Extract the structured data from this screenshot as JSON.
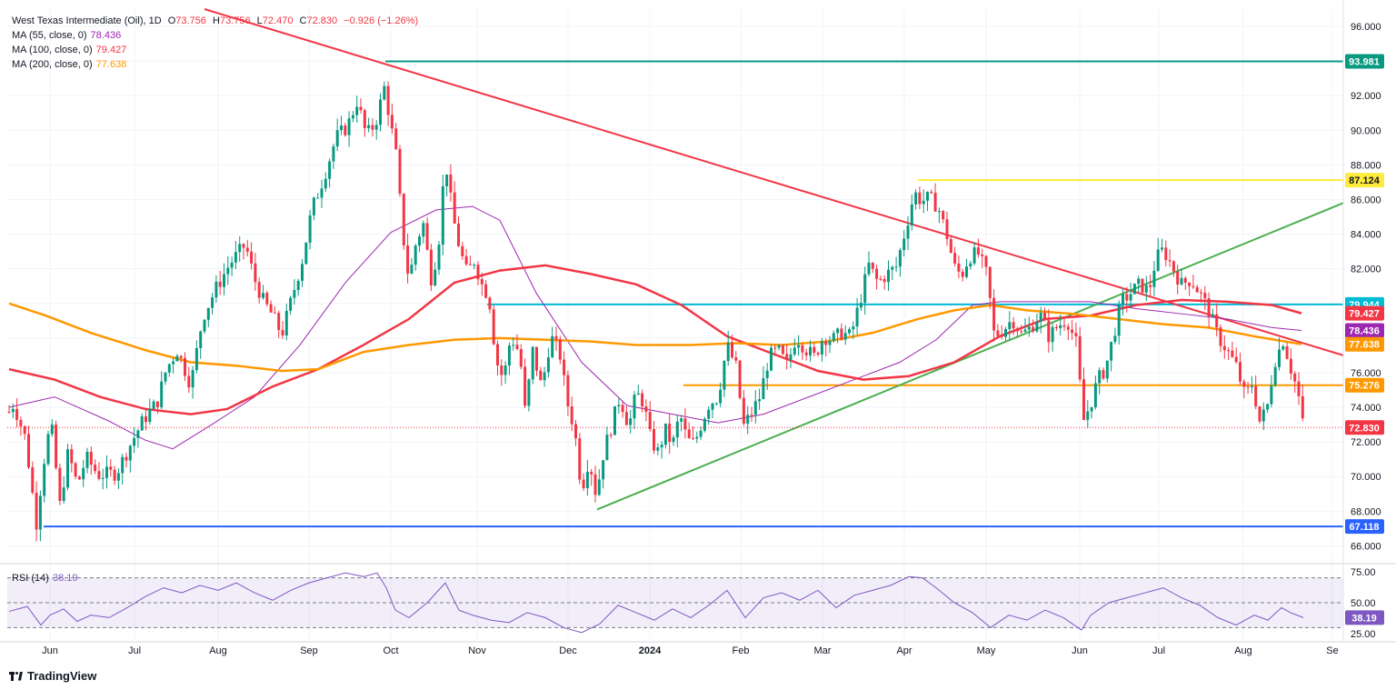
{
  "header": {
    "symbol": "West Texas Intermediate (Oil), 1D",
    "o_label": "O",
    "o_value": "73.756",
    "h_label": "H",
    "h_value": "73.756",
    "l_label": "L",
    "l_value": "72.470",
    "c_label": "C",
    "c_value": "72.830",
    "change": "−0.926 (−1.26%)",
    "change_color": "#f23645"
  },
  "indicators": [
    {
      "label": "MA (55, close, 0)",
      "value": "78.436",
      "color": "#9c27b0"
    },
    {
      "label": "MA (100, close, 0)",
      "value": "79.427",
      "color": "#f23645"
    },
    {
      "label": "MA (200, close, 0)",
      "value": "77.638",
      "color": "#ff9800"
    }
  ],
  "rsi_header": {
    "label": "RSI (14)",
    "value": "38.19",
    "color": "#7e57c2"
  },
  "branding": {
    "text": "TradingView"
  },
  "chart_data": {
    "type": "candlestick",
    "x_ticks": [
      "Jun",
      "Jul",
      "Aug",
      "Sep",
      "Oct",
      "Nov",
      "Dec",
      "2024",
      "Feb",
      "Mar",
      "Apr",
      "May",
      "Jun",
      "Jul",
      "Aug",
      "Se"
    ],
    "y_ticks": [
      "96.000",
      "94.000",
      "92.000",
      "90.000",
      "88.000",
      "86.000",
      "84.000",
      "82.000",
      "80.000",
      "78.000",
      "76.000",
      "74.000",
      "72.000",
      "70.000",
      "68.000",
      "66.000"
    ],
    "ylim": [
      65.6,
      97
    ],
    "price_path": [
      [
        0,
        72.8
      ],
      [
        15,
        74.2
      ],
      [
        28,
        72.2
      ],
      [
        40,
        67.3
      ],
      [
        48,
        70.8
      ],
      [
        56,
        73.2
      ],
      [
        66,
        68.3
      ],
      [
        75,
        71.4
      ],
      [
        85,
        69.5
      ],
      [
        95,
        71.1
      ],
      [
        108,
        70.1
      ],
      [
        128,
        70.2
      ],
      [
        143,
        71.8
      ],
      [
        158,
        73.3
      ],
      [
        173,
        74.3
      ],
      [
        183,
        76.2
      ],
      [
        195,
        77.3
      ],
      [
        210,
        75.3
      ],
      [
        223,
        79.2
      ],
      [
        238,
        80.9
      ],
      [
        253,
        82.3
      ],
      [
        270,
        83.4
      ],
      [
        280,
        81.4
      ],
      [
        290,
        80.1
      ],
      [
        300,
        79.3
      ],
      [
        310,
        78.2
      ],
      [
        320,
        80.1
      ],
      [
        333,
        82.6
      ],
      [
        343,
        85.4
      ],
      [
        357,
        87.4
      ],
      [
        370,
        89.6
      ],
      [
        382,
        90.2
      ],
      [
        393,
        91.7
      ],
      [
        403,
        89.7
      ],
      [
        413,
        90.4
      ],
      [
        423,
        92.5
      ],
      [
        430,
        90.3
      ],
      [
        436,
        88.5
      ],
      [
        443,
        84.1
      ],
      [
        450,
        81.3
      ],
      [
        458,
        83.6
      ],
      [
        466,
        84.6
      ],
      [
        474,
        81.4
      ],
      [
        482,
        83.1
      ],
      [
        490,
        88.4
      ],
      [
        498,
        85.1
      ],
      [
        506,
        83.1
      ],
      [
        514,
        81.7
      ],
      [
        522,
        82.5
      ],
      [
        530,
        81.1
      ],
      [
        538,
        80.4
      ],
      [
        546,
        76.7
      ],
      [
        554,
        75.6
      ],
      [
        562,
        78.1
      ],
      [
        572,
        77.1
      ],
      [
        578,
        73.6
      ],
      [
        586,
        77.3
      ],
      [
        596,
        75.1
      ],
      [
        606,
        78.1
      ],
      [
        616,
        77.1
      ],
      [
        624,
        74.3
      ],
      [
        632,
        72.8
      ],
      [
        640,
        69.2
      ],
      [
        648,
        71.1
      ],
      [
        656,
        68.9
      ],
      [
        664,
        71.4
      ],
      [
        672,
        72.8
      ],
      [
        682,
        74.6
      ],
      [
        692,
        72.9
      ],
      [
        700,
        74.8
      ],
      [
        708,
        74.3
      ],
      [
        716,
        72.1
      ],
      [
        724,
        71.4
      ],
      [
        732,
        72.7
      ],
      [
        740,
        71.8
      ],
      [
        748,
        73.6
      ],
      [
        756,
        72.1
      ],
      [
        764,
        71.9
      ],
      [
        772,
        73.1
      ],
      [
        780,
        74.2
      ],
      [
        790,
        74.6
      ],
      [
        800,
        77.6
      ],
      [
        810,
        76.3
      ],
      [
        818,
        72.9
      ],
      [
        826,
        73.6
      ],
      [
        836,
        74.6
      ],
      [
        846,
        76.9
      ],
      [
        856,
        77.3
      ],
      [
        866,
        76.4
      ],
      [
        876,
        78.1
      ],
      [
        886,
        77.4
      ],
      [
        896,
        76.9
      ],
      [
        906,
        78.1
      ],
      [
        916,
        77.9
      ],
      [
        926,
        78.3
      ],
      [
        936,
        78.1
      ],
      [
        946,
        80.1
      ],
      [
        956,
        82.2
      ],
      [
        966,
        81.2
      ],
      [
        976,
        81.7
      ],
      [
        986,
        82.1
      ],
      [
        996,
        84.2
      ],
      [
        1006,
        86.4
      ],
      [
        1014,
        85.9
      ],
      [
        1022,
        86.1
      ],
      [
        1032,
        85.6
      ],
      [
        1042,
        83.9
      ],
      [
        1050,
        82.1
      ],
      [
        1058,
        81.6
      ],
      [
        1066,
        82.7
      ],
      [
        1076,
        82.9
      ],
      [
        1086,
        81.6
      ],
      [
        1094,
        78.1
      ],
      [
        1104,
        78.5
      ],
      [
        1114,
        79.1
      ],
      [
        1124,
        78.2
      ],
      [
        1134,
        78.6
      ],
      [
        1144,
        79.4
      ],
      [
        1154,
        78.1
      ],
      [
        1164,
        78.7
      ],
      [
        1174,
        79.1
      ],
      [
        1184,
        77.7
      ],
      [
        1192,
        73.2
      ],
      [
        1200,
        74.2
      ],
      [
        1208,
        75.6
      ],
      [
        1216,
        76.2
      ],
      [
        1224,
        77.9
      ],
      [
        1234,
        80.1
      ],
      [
        1244,
        80.6
      ],
      [
        1254,
        81.1
      ],
      [
        1264,
        80.7
      ],
      [
        1272,
        82.6
      ],
      [
        1280,
        83.1
      ],
      [
        1290,
        82.1
      ],
      [
        1300,
        81.1
      ],
      [
        1310,
        81.4
      ],
      [
        1320,
        80.6
      ],
      [
        1330,
        79.6
      ],
      [
        1340,
        78.1
      ],
      [
        1350,
        77.3
      ],
      [
        1360,
        76.4
      ],
      [
        1370,
        74.6
      ],
      [
        1378,
        75.4
      ],
      [
        1386,
        73.2
      ],
      [
        1394,
        73.9
      ],
      [
        1402,
        76.6
      ],
      [
        1412,
        77.9
      ],
      [
        1420,
        76.3
      ],
      [
        1428,
        74.9
      ],
      [
        1434,
        72.83
      ]
    ],
    "moving_averages": [
      {
        "name": "MA 55",
        "color": "#9c27b0",
        "points": [
          [
            10,
            74.0
          ],
          [
            60,
            74.6
          ],
          [
            120,
            73.2
          ],
          [
            160,
            72.1
          ],
          [
            190,
            71.6
          ],
          [
            230,
            72.9
          ],
          [
            280,
            74.6
          ],
          [
            330,
            77.6
          ],
          [
            380,
            81.2
          ],
          [
            430,
            84.1
          ],
          [
            480,
            85.4
          ],
          [
            520,
            85.6
          ],
          [
            550,
            84.8
          ],
          [
            590,
            80.6
          ],
          [
            640,
            76.6
          ],
          [
            690,
            74.1
          ],
          [
            740,
            73.6
          ],
          [
            790,
            73.1
          ],
          [
            840,
            73.6
          ],
          [
            890,
            74.6
          ],
          [
            940,
            75.6
          ],
          [
            990,
            76.6
          ],
          [
            1030,
            77.9
          ],
          [
            1070,
            79.9
          ],
          [
            1100,
            80.1
          ],
          [
            1150,
            80.1
          ],
          [
            1200,
            80.1
          ],
          [
            1250,
            79.7
          ],
          [
            1300,
            79.4
          ],
          [
            1350,
            79.1
          ],
          [
            1400,
            78.6
          ],
          [
            1432,
            78.44
          ]
        ]
      },
      {
        "name": "MA 100",
        "color": "#f23645",
        "points": [
          [
            10,
            76.2
          ],
          [
            60,
            75.6
          ],
          [
            110,
            74.6
          ],
          [
            160,
            73.9
          ],
          [
            210,
            73.6
          ],
          [
            250,
            73.9
          ],
          [
            300,
            75.2
          ],
          [
            350,
            76.2
          ],
          [
            400,
            77.6
          ],
          [
            450,
            79.1
          ],
          [
            500,
            81.2
          ],
          [
            550,
            81.9
          ],
          [
            600,
            82.2
          ],
          [
            650,
            81.7
          ],
          [
            700,
            81.1
          ],
          [
            750,
            79.9
          ],
          [
            800,
            78.1
          ],
          [
            850,
            77.1
          ],
          [
            900,
            76.1
          ],
          [
            950,
            75.6
          ],
          [
            1000,
            75.8
          ],
          [
            1050,
            76.6
          ],
          [
            1100,
            78.1
          ],
          [
            1150,
            79.1
          ],
          [
            1200,
            79.3
          ],
          [
            1250,
            79.9
          ],
          [
            1300,
            80.2
          ],
          [
            1350,
            80.1
          ],
          [
            1400,
            79.9
          ],
          [
            1432,
            79.43
          ]
        ]
      },
      {
        "name": "MA 200",
        "color": "#ff9800",
        "points": [
          [
            10,
            80.0
          ],
          [
            50,
            79.3
          ],
          [
            100,
            78.3
          ],
          [
            160,
            77.3
          ],
          [
            210,
            76.6
          ],
          [
            260,
            76.4
          ],
          [
            310,
            76.1
          ],
          [
            350,
            76.2
          ],
          [
            400,
            77.2
          ],
          [
            450,
            77.6
          ],
          [
            500,
            77.9
          ],
          [
            550,
            78.0
          ],
          [
            600,
            77.9
          ],
          [
            650,
            77.8
          ],
          [
            700,
            77.6
          ],
          [
            760,
            77.6
          ],
          [
            810,
            77.7
          ],
          [
            860,
            77.6
          ],
          [
            910,
            77.8
          ],
          [
            960,
            78.3
          ],
          [
            1010,
            79.1
          ],
          [
            1050,
            79.6
          ],
          [
            1090,
            79.9
          ],
          [
            1130,
            79.6
          ],
          [
            1180,
            79.4
          ],
          [
            1230,
            79.1
          ],
          [
            1280,
            78.8
          ],
          [
            1330,
            78.6
          ],
          [
            1380,
            78.1
          ],
          [
            1432,
            77.64
          ]
        ]
      }
    ],
    "horizontal_levels": [
      {
        "value": 93.981,
        "label": "93.981",
        "color": "#089981",
        "x_start": 424
      },
      {
        "value": 87.124,
        "label": "87.124",
        "color": "#ffeb3b",
        "x_start": 1010
      },
      {
        "value": 79.944,
        "label": "79.944",
        "color": "#00bcd4",
        "x_start": 536
      },
      {
        "value": 75.276,
        "label": "75.276",
        "color": "#ff9800",
        "x_start": 752
      },
      {
        "value": 67.118,
        "label": "67.118",
        "color": "#2962ff",
        "x_start": 48
      }
    ],
    "trendlines": [
      {
        "name": "descending",
        "color": "#f23645",
        "points": [
          [
            225,
            97.0
          ],
          [
            1478,
            77.0
          ]
        ]
      },
      {
        "name": "ascending",
        "color": "#4caf50",
        "points": [
          [
            657,
            68.1
          ],
          [
            1478,
            85.8
          ]
        ]
      }
    ],
    "last_price": {
      "value": 72.83,
      "label": "72.830",
      "color": "#f23645"
    },
    "ma_labels": [
      {
        "value": 79.427,
        "label": "79.427",
        "color": "#f23645"
      },
      {
        "value": 78.436,
        "label": "78.436",
        "color": "#9c27b0"
      },
      {
        "value": 77.638,
        "label": "77.638",
        "color": "#ff9800"
      }
    ],
    "rsi": {
      "ylim": [
        20,
        80
      ],
      "y_ticks": [
        "75.00",
        "50.00",
        "25.00"
      ],
      "levels": [
        70,
        50,
        30
      ],
      "value_label": "38.19",
      "color": "#7e57c2",
      "points": [
        [
          10,
          43
        ],
        [
          30,
          47
        ],
        [
          45,
          32
        ],
        [
          55,
          40
        ],
        [
          70,
          45
        ],
        [
          85,
          35
        ],
        [
          100,
          40
        ],
        [
          120,
          38
        ],
        [
          140,
          46
        ],
        [
          160,
          55
        ],
        [
          180,
          62
        ],
        [
          200,
          58
        ],
        [
          220,
          64
        ],
        [
          240,
          60
        ],
        [
          260,
          66
        ],
        [
          280,
          58
        ],
        [
          300,
          52
        ],
        [
          320,
          60
        ],
        [
          340,
          66
        ],
        [
          360,
          70
        ],
        [
          380,
          74
        ],
        [
          400,
          71
        ],
        [
          415,
          74
        ],
        [
          425,
          62
        ],
        [
          435,
          44
        ],
        [
          450,
          38
        ],
        [
          470,
          50
        ],
        [
          490,
          66
        ],
        [
          505,
          44
        ],
        [
          520,
          40
        ],
        [
          540,
          36
        ],
        [
          560,
          34
        ],
        [
          580,
          42
        ],
        [
          600,
          38
        ],
        [
          620,
          30
        ],
        [
          640,
          26
        ],
        [
          660,
          33
        ],
        [
          680,
          48
        ],
        [
          700,
          42
        ],
        [
          720,
          36
        ],
        [
          740,
          45
        ],
        [
          760,
          38
        ],
        [
          780,
          48
        ],
        [
          800,
          60
        ],
        [
          820,
          38
        ],
        [
          840,
          54
        ],
        [
          860,
          58
        ],
        [
          880,
          52
        ],
        [
          900,
          60
        ],
        [
          920,
          46
        ],
        [
          940,
          56
        ],
        [
          960,
          60
        ],
        [
          980,
          64
        ],
        [
          1000,
          71
        ],
        [
          1015,
          70
        ],
        [
          1030,
          62
        ],
        [
          1050,
          50
        ],
        [
          1070,
          42
        ],
        [
          1090,
          30
        ],
        [
          1110,
          40
        ],
        [
          1130,
          36
        ],
        [
          1150,
          44
        ],
        [
          1170,
          38
        ],
        [
          1190,
          28
        ],
        [
          1200,
          40
        ],
        [
          1220,
          50
        ],
        [
          1240,
          54
        ],
        [
          1260,
          58
        ],
        [
          1280,
          62
        ],
        [
          1300,
          54
        ],
        [
          1320,
          48
        ],
        [
          1340,
          38
        ],
        [
          1360,
          32
        ],
        [
          1380,
          40
        ],
        [
          1395,
          36
        ],
        [
          1410,
          46
        ],
        [
          1420,
          42
        ],
        [
          1434,
          38
        ]
      ]
    }
  }
}
